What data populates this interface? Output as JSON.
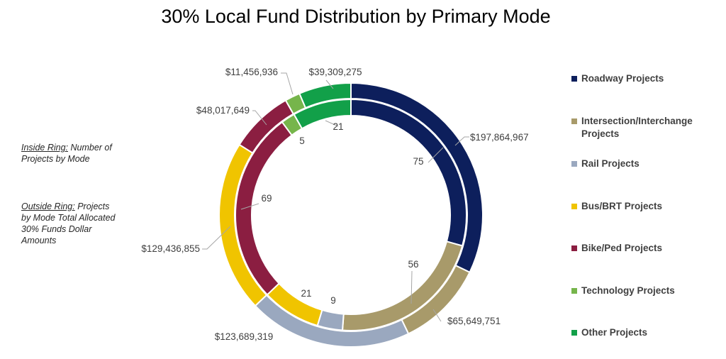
{
  "title": "30% Local Fund Distribution by Primary Mode",
  "notes": {
    "inside_underlined": "Inside Ring:",
    "inside_rest": "Number of Projects by Mode",
    "outside_underlined": "Outside Ring:",
    "outside_rest": "Projects by Mode Total Allocated 30% Funds Dollar Amounts"
  },
  "chart_data": {
    "type": "doughnut",
    "title": "30% Local Fund Distribution by Primary Mode",
    "categories": [
      "Roadway Projects",
      "Intersection/Interchange Projects",
      "Rail Projects",
      "Bus/BRT Projects",
      "Bike/Ped Projects",
      "Technology Projects",
      "Other Projects"
    ],
    "colors": [
      "#0d1f5c",
      "#a89a6a",
      "#9aa8bf",
      "#f0c400",
      "#8b1e41",
      "#76b54b",
      "#12a049"
    ],
    "series": [
      {
        "ring": "inner",
        "values": [
          75,
          56,
          9,
          21,
          69,
          5,
          21
        ],
        "labels": [
          "75",
          "56",
          "9",
          "21",
          "69",
          "5",
          "21"
        ]
      },
      {
        "ring": "outer",
        "values": [
          197864967,
          65649751,
          123689319,
          129436855,
          48017649,
          11456936,
          39309275
        ],
        "labels": [
          "$197,864,967",
          "$65,649,751",
          "$123,689,319",
          "$129,436,855",
          "$48,017,649",
          "$11,456,936",
          "$39,309,275"
        ]
      }
    ],
    "legend_position": "right"
  }
}
